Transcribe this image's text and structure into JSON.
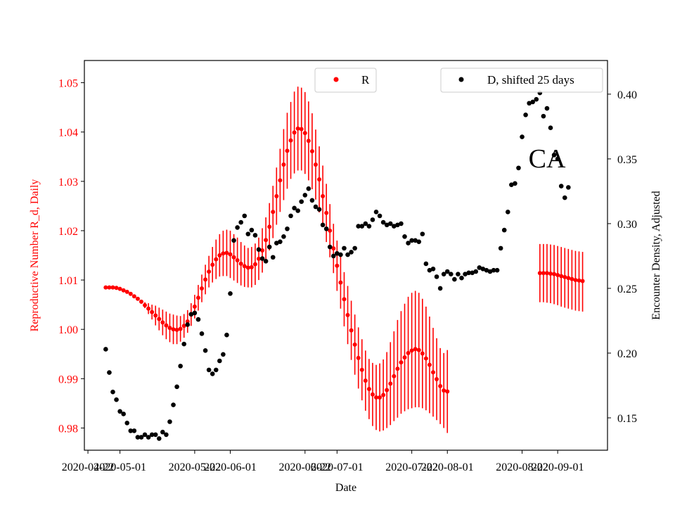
{
  "chart_data": {
    "type": "scatter",
    "annotation": "CA",
    "xlabel": "Date",
    "ylabel_left": "Reproductive Number R_d, Daily",
    "ylabel_right": "Encounter Density, Adjusted",
    "x_ticks": [
      "2020-04-22",
      "2020-05-01",
      "2020-05-22",
      "2020-06-01",
      "2020-06-22",
      "2020-07-01",
      "2020-07-22",
      "2020-08-01",
      "2020-08-22",
      "2020-09-01"
    ],
    "y_left_ticks": [
      "0.98",
      "0.99",
      "1.00",
      "1.01",
      "1.02",
      "1.03",
      "1.04",
      "1.05"
    ],
    "y_right_ticks": [
      "0.15",
      "0.20",
      "0.25",
      "0.30",
      "0.35",
      "0.40"
    ],
    "y_left_range": [
      0.9755,
      1.0545
    ],
    "y_right_range": [
      0.125,
      0.426
    ],
    "x_range": [
      "2020-04-21",
      "2020-09-15"
    ],
    "legend": [
      {
        "label": "R",
        "color": "#ff0000",
        "placement": "top-center"
      },
      {
        "label": "D, shifted 25 days",
        "color": "#000000",
        "placement": "top-right"
      }
    ],
    "colors": {
      "R": "#ff0000",
      "D": "#000000"
    },
    "series": [
      {
        "name": "R",
        "axis": "left",
        "segments": [
          {
            "start_date": "2020-04-27",
            "values": [
              1.0085,
              1.0085,
              1.0085,
              1.0084,
              1.0082,
              1.0079,
              1.0076,
              1.0072,
              1.0067,
              1.0062,
              1.0056,
              1.0049,
              1.0042,
              1.0035,
              1.0028,
              1.0021,
              1.0014,
              1.0008,
              1.0003,
              1.0,
              0.9999,
              1.0001,
              1.0007,
              1.0016,
              1.003,
              1.0046,
              1.0064,
              1.0083,
              1.0101,
              1.0117,
              1.0131,
              1.0142,
              1.015,
              1.0154,
              1.0155,
              1.0152,
              1.0146,
              1.014,
              1.0133,
              1.0128,
              1.0125,
              1.0126,
              1.0132,
              1.0143,
              1.016,
              1.0181,
              1.0208,
              1.0238,
              1.027,
              1.0302,
              1.0334,
              1.0362,
              1.0383,
              1.0399,
              1.0407,
              1.0406,
              1.0398,
              1.0382,
              1.0361,
              1.0334,
              1.0304,
              1.027,
              1.0236,
              1.02,
              1.0164,
              1.0129,
              1.0095,
              1.0061,
              1.0029,
              0.9998,
              0.9969,
              0.9942,
              0.9918,
              0.9896,
              0.9879,
              0.9868,
              0.9862,
              0.9862,
              0.9867,
              0.9877,
              0.989,
              0.9905,
              0.992,
              0.9933,
              0.9943,
              0.9952,
              0.9957,
              0.996,
              0.9958,
              0.9951,
              0.9941,
              0.9928,
              0.9913,
              0.9899,
              0.9885,
              0.9876,
              0.9874
            ],
            "lower": [
              1.0085,
              1.0085,
              1.0085,
              1.0084,
              1.0082,
              1.0079,
              1.0076,
              1.0072,
              1.0067,
              1.0062,
              1.0052,
              1.0043,
              1.0031,
              1.002,
              1.0008,
              0.9998,
              0.9988,
              0.998,
              0.9974,
              0.997,
              0.997,
              0.9975,
              0.9983,
              0.9993,
              1.0007,
              1.0022,
              1.0038,
              1.0055,
              1.0071,
              1.0085,
              1.0095,
              1.0102,
              1.0107,
              1.0108,
              1.0108,
              1.0104,
              1.0099,
              1.0094,
              1.0089,
              1.0086,
              1.0085,
              1.0085,
              1.009,
              1.01,
              1.0115,
              1.0135,
              1.016,
              1.0185,
              1.0212,
              1.0238,
              1.0262,
              1.0285,
              1.0305,
              1.0316,
              1.0322,
              1.0322,
              1.0315,
              1.0302,
              1.0284,
              1.0263,
              1.0237,
              1.0208,
              1.0177,
              1.0146,
              1.0114,
              1.0078,
              1.0042,
              1.0006,
              0.997,
              0.9938,
              0.9908,
              0.988,
              0.9856,
              0.9835,
              0.9818,
              0.9804,
              0.9796,
              0.9793,
              0.9795,
              0.98,
              0.9806,
              0.9814,
              0.9821,
              0.9829,
              0.9834,
              0.9838,
              0.984,
              0.9842,
              0.9842,
              0.984,
              0.9836,
              0.983,
              0.9823,
              0.9816,
              0.9808,
              0.98,
              0.979
            ],
            "upper": [
              1.0085,
              1.0085,
              1.0085,
              1.0084,
              1.0082,
              1.0079,
              1.0076,
              1.0072,
              1.0067,
              1.0062,
              1.006,
              1.0055,
              1.0053,
              1.005,
              1.0048,
              1.0044,
              1.004,
              1.0036,
              1.0032,
              1.003,
              1.0028,
              1.0027,
              1.0031,
              1.0039,
              1.0053,
              1.007,
              1.009,
              1.0111,
              1.0131,
              1.0149,
              1.0167,
              1.0182,
              1.0193,
              1.02,
              1.0202,
              1.02,
              1.0193,
              1.0186,
              1.0177,
              1.017,
              1.0165,
              1.0167,
              1.0174,
              1.0186,
              1.0205,
              1.0227,
              1.0256,
              1.0291,
              1.0328,
              1.0366,
              1.0406,
              1.0439,
              1.0461,
              1.0482,
              1.0492,
              1.049,
              1.0481,
              1.0462,
              1.0438,
              1.0405,
              1.0371,
              1.0332,
              1.0295,
              1.0254,
              1.0214,
              1.018,
              1.0148,
              1.0116,
              1.0088,
              1.0058,
              1.003,
              1.0004,
              0.998,
              0.9957,
              0.994,
              0.9932,
              0.9928,
              0.9931,
              0.9939,
              0.9954,
              0.9974,
              0.9996,
              1.0019,
              1.0037,
              1.0052,
              1.0066,
              1.0074,
              1.0078,
              1.0074,
              1.0062,
              1.0046,
              1.0026,
              1.0003,
              0.9982,
              0.9962,
              0.9952,
              0.9958
            ]
          },
          {
            "start_date": "2020-08-27",
            "values": [
              1.0114,
              1.0114,
              1.0114,
              1.0113,
              1.0112,
              1.011,
              1.0108,
              1.0106,
              1.0104,
              1.0102,
              1.01,
              1.0099,
              1.0098
            ],
            "lower": [
              1.0055,
              1.0055,
              1.0054,
              1.0053,
              1.0051,
              1.0049,
              1.0046,
              1.0044,
              1.0042,
              1.004,
              1.0038,
              1.0037,
              1.0036
            ],
            "upper": [
              1.0173,
              1.0173,
              1.0173,
              1.0172,
              1.0171,
              1.0169,
              1.0167,
              1.0165,
              1.0163,
              1.0161,
              1.0159,
              1.0158,
              1.0157
            ]
          }
        ]
      },
      {
        "name": "D, shifted 25 days",
        "axis": "right",
        "start_date": "2020-04-27",
        "values": [
          0.203,
          0.185,
          0.17,
          0.164,
          0.155,
          0.153,
          0.146,
          0.14,
          0.14,
          0.135,
          0.135,
          0.137,
          0.135,
          0.137,
          0.137,
          0.134,
          0.139,
          0.137,
          0.147,
          0.16,
          0.174,
          0.19,
          0.207,
          0.222,
          0.23,
          0.231,
          0.226,
          0.215,
          0.202,
          0.187,
          0.184,
          0.187,
          0.194,
          0.199,
          0.214,
          0.246,
          0.287,
          0.297,
          0.301,
          0.306,
          0.292,
          0.295,
          0.291,
          0.28,
          0.273,
          0.271,
          0.282,
          0.274,
          0.285,
          0.286,
          0.29,
          0.296,
          0.306,
          0.312,
          0.31,
          0.317,
          0.322,
          0.327,
          0.318,
          0.313,
          0.311,
          0.299,
          0.296,
          0.282,
          0.275,
          0.277,
          0.276,
          0.281,
          0.276,
          0.278,
          0.281,
          0.298,
          0.298,
          0.3,
          0.298,
          0.303,
          0.309,
          0.306,
          0.301,
          0.299,
          0.3,
          0.298,
          0.299,
          0.3,
          0.29,
          0.285,
          0.287,
          0.287,
          0.286,
          0.292,
          0.269,
          0.264,
          0.265,
          0.259,
          0.25,
          0.261,
          0.263,
          0.261,
          0.257,
          0.261,
          0.258,
          0.261,
          0.262,
          0.262,
          0.263,
          0.266,
          0.265,
          0.264,
          0.263,
          0.264,
          0.264,
          0.281,
          0.295,
          0.309,
          0.33,
          0.331,
          0.343,
          0.367,
          0.384,
          0.393,
          0.394,
          0.396,
          0.401,
          0.383,
          0.389,
          0.374,
          0.353,
          0.35,
          0.329,
          0.32,
          0.328
        ]
      }
    ]
  }
}
